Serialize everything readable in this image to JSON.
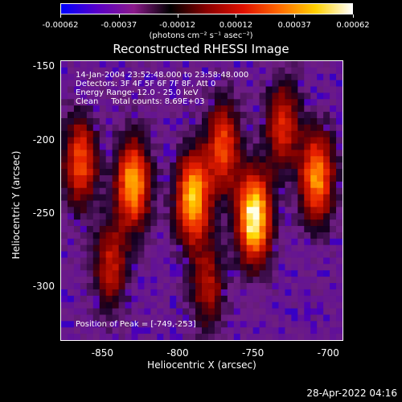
{
  "colorbar": {
    "ticks": [
      "-0.00062",
      "-0.00037",
      "-0.00012",
      "0.00012",
      "0.00037",
      "0.00062"
    ],
    "units": "(photons cm⁻² s⁻¹ asec⁻²)",
    "colors": [
      "#0000ff",
      "#5a00c8",
      "#8a1a8a",
      "#000000",
      "#8a0000",
      "#e01000",
      "#ff6a00",
      "#ffd000",
      "#ffffff"
    ]
  },
  "title": "Reconstructed RHESSI Image",
  "annotations": {
    "time": "14-Jan-2004 23:52:48.000 to 23:58:48.000",
    "detectors": "Detectors: 3F 4F 5F 6F 7F 8F, Att 0",
    "energy": "Energy Range: 12.0 - 25.0 keV",
    "clean": "Clean     Total counts: 8.69E+03",
    "peak": "Position of Peak = [-749,-253]"
  },
  "axes": {
    "xlabel": "Heliocentric X (arcsec)",
    "ylabel": "Heliocentric Y (arcsec)",
    "xticks": [
      "-850",
      "-800",
      "-750",
      "-700"
    ],
    "yticks": [
      "-150",
      "-200",
      "-250",
      "-300"
    ]
  },
  "chart_data": {
    "type": "heatmap",
    "title": "Reconstructed RHESSI Image",
    "xlabel": "Heliocentric X (arcsec)",
    "ylabel": "Heliocentric Y (arcsec)",
    "xlim": [
      -878,
      -690
    ],
    "ylim": [
      -337,
      -146
    ],
    "xticks": [
      -850,
      -800,
      -750,
      -700
    ],
    "yticks": [
      -150,
      -200,
      -250,
      -300
    ],
    "peak_position": [
      -749,
      -253
    ],
    "sources": [
      {
        "x": -749,
        "y": -253,
        "intensity": 1.0
      },
      {
        "x": -790,
        "y": -240,
        "intensity": 0.85
      },
      {
        "x": -830,
        "y": -230,
        "intensity": 0.8
      },
      {
        "x": -707,
        "y": -225,
        "intensity": 0.75
      },
      {
        "x": -770,
        "y": -205,
        "intensity": 0.6
      },
      {
        "x": -865,
        "y": -215,
        "intensity": 0.6
      },
      {
        "x": -730,
        "y": -190,
        "intensity": 0.5
      },
      {
        "x": -845,
        "y": -285,
        "intensity": 0.45
      },
      {
        "x": -780,
        "y": -300,
        "intensity": 0.4
      }
    ]
  },
  "datestamp": "28-Apr-2022 04:16"
}
